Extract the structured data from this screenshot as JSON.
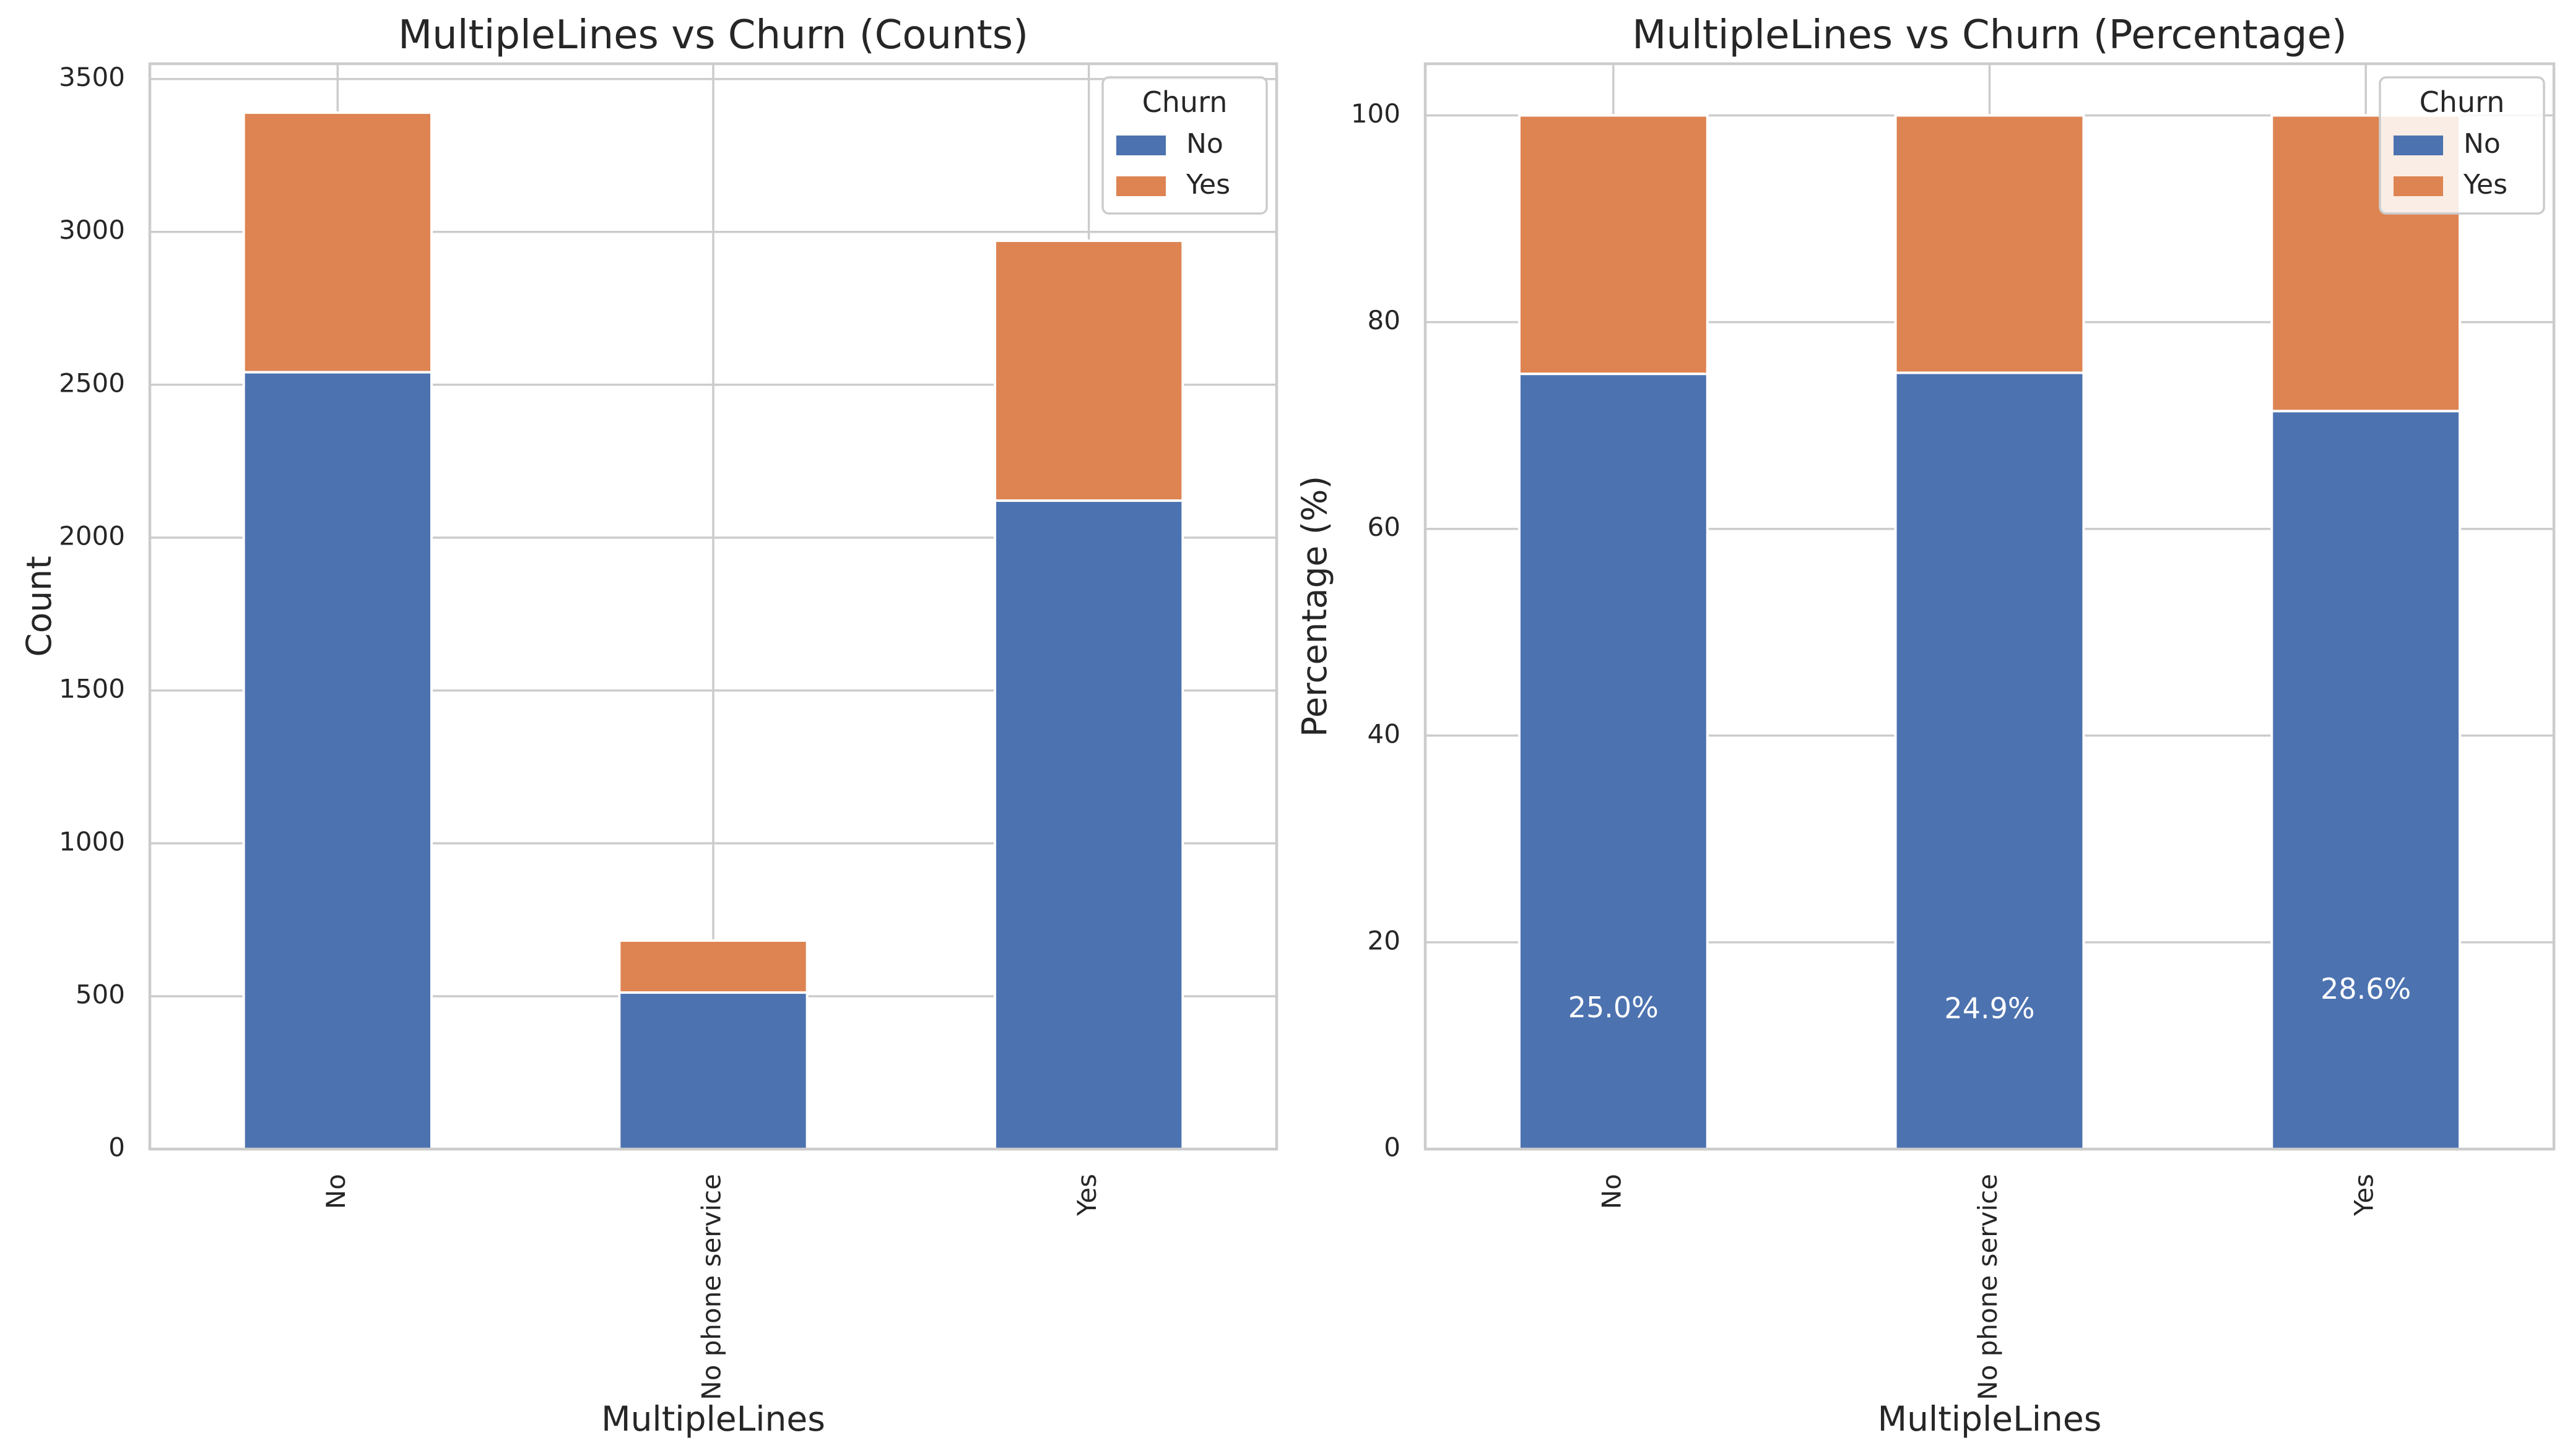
{
  "colors": {
    "no": "#4c72b0",
    "yes": "#dd8452",
    "grid": "#cccccc",
    "axis": "#cccccc",
    "text": "#262626"
  },
  "chart_data": [
    {
      "type": "bar",
      "stacked": true,
      "title": "MultipleLines vs Churn (Counts)",
      "xlabel": "MultipleLines",
      "ylabel": "Count",
      "categories": [
        "No",
        "No phone service",
        "Yes"
      ],
      "series": [
        {
          "name": "No",
          "values": [
            2541,
            512,
            2121
          ]
        },
        {
          "name": "Yes",
          "values": [
            849,
            170,
            850
          ]
        }
      ],
      "ylim": [
        0,
        3550
      ],
      "yticks": [
        0,
        500,
        1000,
        1500,
        2000,
        2500,
        3000,
        3500
      ],
      "grid": true,
      "legend": {
        "title": "Churn",
        "position": "top-right"
      },
      "annotations": []
    },
    {
      "type": "bar",
      "stacked": true,
      "title": "MultipleLines vs Churn (Percentage)",
      "xlabel": "MultipleLines",
      "ylabel": "Percentage (%)",
      "categories": [
        "No",
        "No phone service",
        "Yes"
      ],
      "series": [
        {
          "name": "No",
          "values": [
            75.0,
            75.1,
            71.4
          ]
        },
        {
          "name": "Yes",
          "values": [
            25.0,
            24.9,
            28.6
          ]
        }
      ],
      "ylim": [
        0,
        105
      ],
      "yticks": [
        0,
        20,
        40,
        60,
        80,
        100
      ],
      "grid": true,
      "legend": {
        "title": "Churn",
        "position": "top-right"
      },
      "annotations": [
        {
          "text": "25.0%",
          "category": "No",
          "y": 13.5
        },
        {
          "text": "24.9%",
          "category": "No phone service",
          "y": 13.4
        },
        {
          "text": "28.6%",
          "category": "Yes",
          "y": 15.3
        }
      ]
    }
  ]
}
